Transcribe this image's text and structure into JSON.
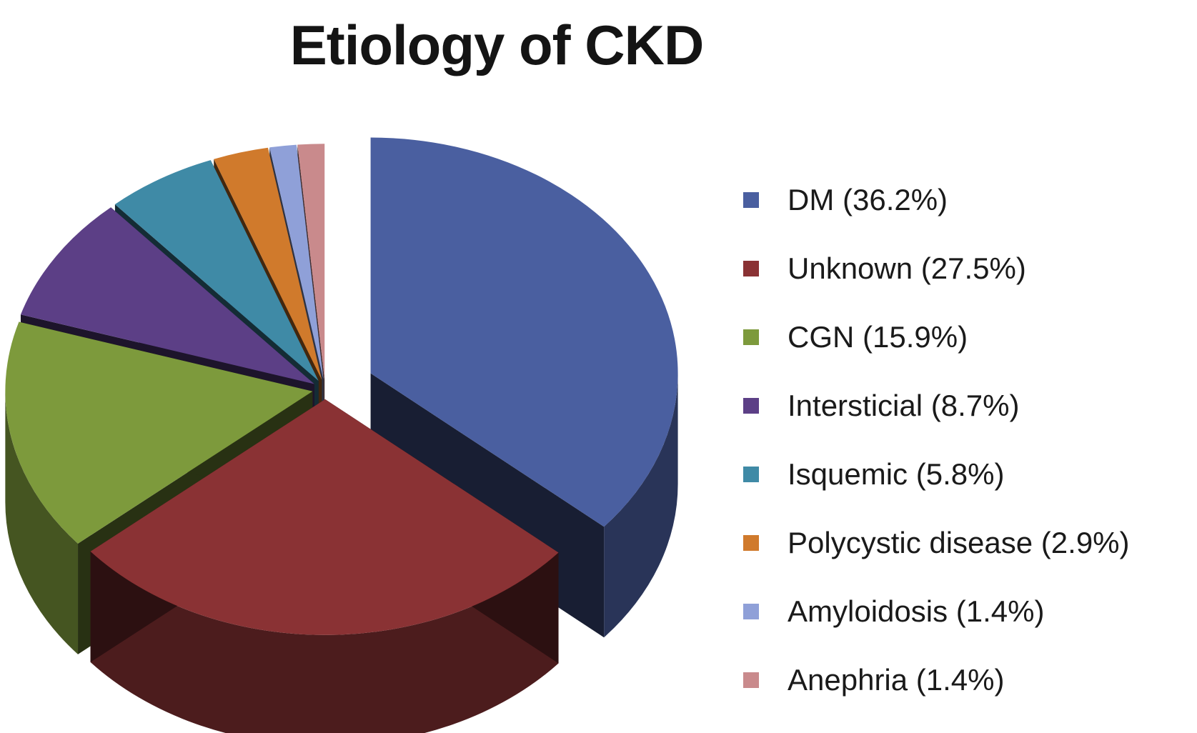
{
  "chart_data": {
    "type": "pie",
    "title": "Etiology of CKD",
    "legend_position": "right",
    "slices": [
      {
        "label": "DM (36.2%)",
        "value": 36.2,
        "color": "#4a5fa0"
      },
      {
        "label": "Unknown (27.5%)",
        "value": 27.5,
        "color": "#8a3234"
      },
      {
        "label": "CGN (15.9%)",
        "value": 15.9,
        "color": "#7d9a3c"
      },
      {
        "label": "Intersticial (8.7%)",
        "value": 8.7,
        "color": "#5c3f86"
      },
      {
        "label": "Isquemic (5.8%)",
        "value": 5.8,
        "color": "#3f8aa6"
      },
      {
        "label": "Polycystic disease (2.9%)",
        "value": 2.9,
        "color": "#d07a2c"
      },
      {
        "label": "Amyloidosis (1.4%)",
        "value": 1.4,
        "color": "#8fa0d8"
      },
      {
        "label": "Anephria (1.4%)",
        "value": 1.4,
        "color": "#c98a8c"
      }
    ]
  }
}
